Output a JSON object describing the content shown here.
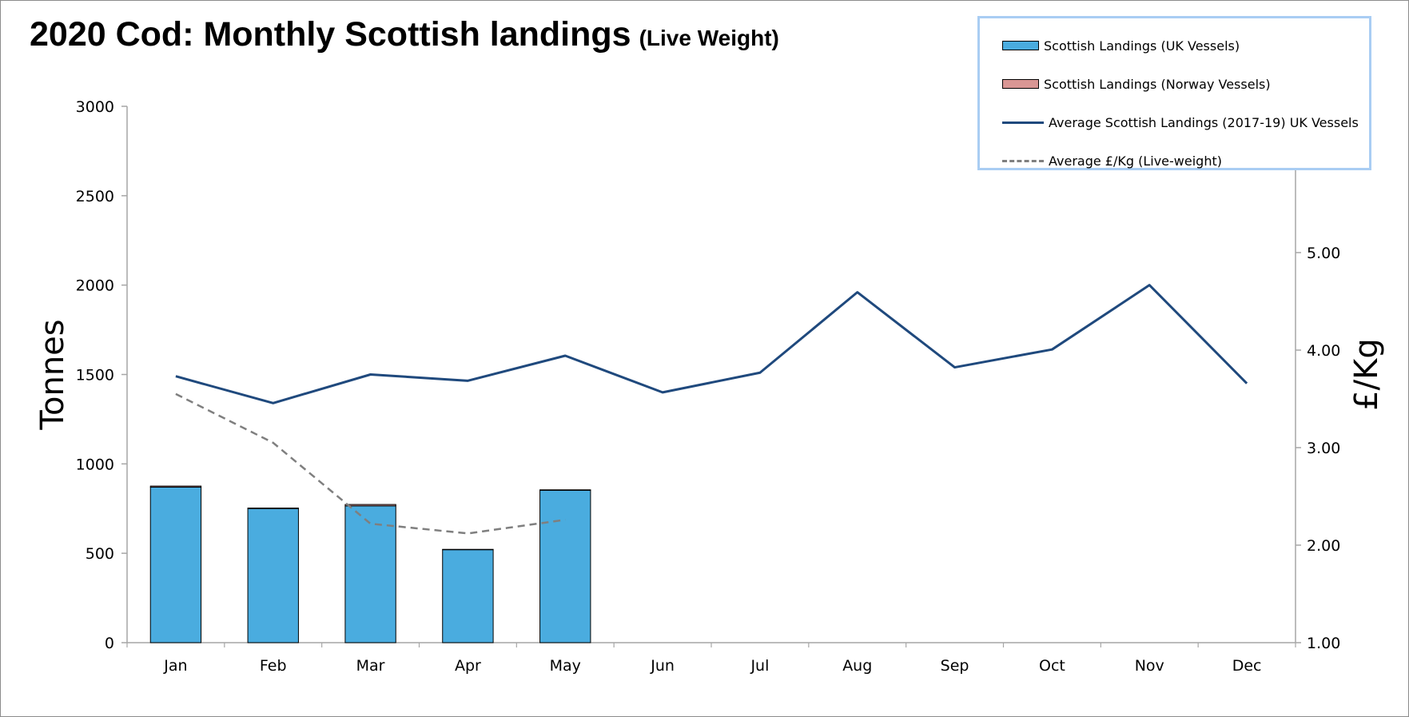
{
  "title": "2020 Cod: Monthly Scottish landings",
  "title_sub": "(Live Weight)",
  "colors": {
    "uk_bars": "#4aacdf",
    "norway_bars": "#d99694",
    "avg_line": "#1f497d",
    "price_line": "#7f7f7f",
    "legend_border": "#a9cdf3"
  },
  "legend": {
    "uk": "Scottish Landings (UK Vessels)",
    "norway": "Scottish Landings (Norway Vessels)",
    "avg": "Average Scottish Landings  (2017-19) UK Vessels",
    "price": "Average £/Kg (Live-weight)"
  },
  "chart_data": {
    "type": "bar",
    "categories": [
      "Jan",
      "Feb",
      "Mar",
      "Apr",
      "May",
      "Jun",
      "Jul",
      "Aug",
      "Sep",
      "Oct",
      "Nov",
      "Dec"
    ],
    "ylabel": "Tonnes",
    "y2label": "£/Kg",
    "ylim": [
      0,
      3000
    ],
    "y2lim": [
      1.0,
      6.5
    ],
    "yticks": [
      "0",
      "500",
      "1000",
      "1500",
      "2000",
      "2500",
      "3000"
    ],
    "y2ticks": [
      "1.00",
      "2.00",
      "3.00",
      "4.00",
      "5.00"
    ],
    "grid": false,
    "legend_position": "top-right",
    "series": [
      {
        "name": "Scottish Landings (UK Vessels)",
        "kind": "bar-stacked",
        "axis": "left",
        "values": [
          870,
          750,
          765,
          520,
          852,
          null,
          null,
          null,
          null,
          null,
          null,
          null
        ]
      },
      {
        "name": "Scottish Landings (Norway Vessels)",
        "kind": "bar-stacked",
        "axis": "left",
        "values": [
          6,
          3,
          8,
          2,
          3,
          null,
          null,
          null,
          null,
          null,
          null,
          null
        ]
      },
      {
        "name": "Average Scottish Landings  (2017-19) UK Vessels",
        "kind": "line",
        "axis": "left",
        "values": [
          1490,
          1340,
          1500,
          1465,
          1605,
          1400,
          1510,
          1960,
          1540,
          1640,
          2000,
          1450
        ]
      },
      {
        "name": "Average £/Kg (Live-weight)",
        "kind": "line-dashed",
        "axis": "right",
        "values": [
          3.55,
          3.05,
          2.22,
          2.12,
          2.26,
          null,
          null,
          null,
          null,
          null,
          null,
          null
        ]
      }
    ]
  }
}
